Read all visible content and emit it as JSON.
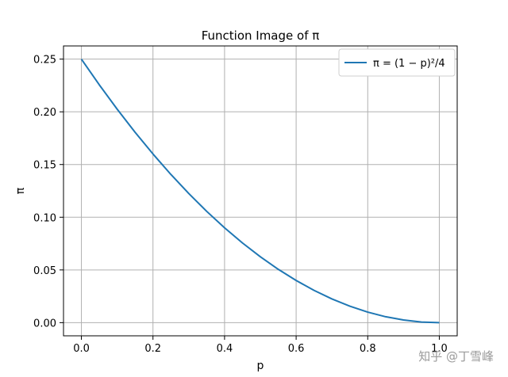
{
  "chart_data": {
    "type": "line",
    "title": "Function Image of π",
    "xlabel": "p",
    "ylabel": "π",
    "xlim": [
      -0.05,
      1.05
    ],
    "ylim": [
      -0.0125,
      0.2625
    ],
    "x_ticks": [
      "0.0",
      "0.2",
      "0.4",
      "0.6",
      "0.8",
      "1.0"
    ],
    "y_ticks": [
      "0.00",
      "0.05",
      "0.10",
      "0.15",
      "0.20",
      "0.25"
    ],
    "grid": true,
    "legend_position": "top-right",
    "series": [
      {
        "name": "π = (1 − p)²/4",
        "color": "#1f77b4",
        "x": [
          0.0,
          0.05,
          0.1,
          0.15,
          0.2,
          0.25,
          0.3,
          0.35,
          0.4,
          0.45,
          0.5,
          0.55,
          0.6,
          0.65,
          0.7,
          0.75,
          0.8,
          0.85,
          0.9,
          0.95,
          1.0
        ],
        "y": [
          0.25,
          0.2256,
          0.2025,
          0.1806,
          0.16,
          0.1406,
          0.1225,
          0.1056,
          0.09,
          0.0756,
          0.0625,
          0.0506,
          0.04,
          0.0306,
          0.0225,
          0.0156,
          0.01,
          0.0056,
          0.0025,
          0.0006,
          0.0
        ]
      }
    ]
  },
  "watermark": "知乎 @丁雪峰"
}
